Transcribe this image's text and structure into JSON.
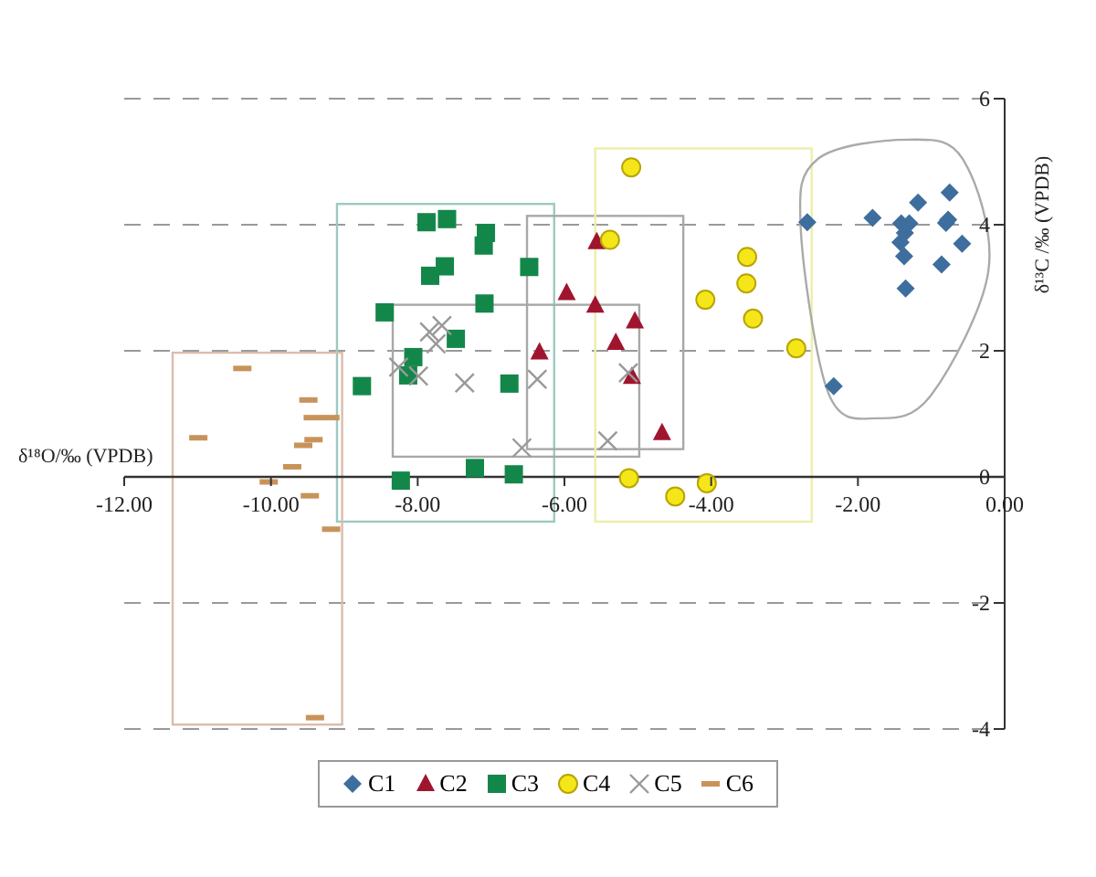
{
  "chart_data": {
    "type": "scatter",
    "xlabel": "δ¹⁸O/‰ (VPDB)",
    "ylabel": "δ¹³C /‰ (VPDB)",
    "xlim": [
      -12,
      0
    ],
    "ylim": [
      -4,
      6
    ],
    "xticks": [
      {
        "value": -12,
        "label": "-12.00"
      },
      {
        "value": -10,
        "label": "-10.00"
      },
      {
        "value": -8,
        "label": "-8.00"
      },
      {
        "value": -6,
        "label": "-6.00"
      },
      {
        "value": -4,
        "label": "-4.00"
      },
      {
        "value": -2,
        "label": "-2.00"
      },
      {
        "value": 0,
        "label": "0.00"
      }
    ],
    "yticks": [
      -4,
      -2,
      0,
      2,
      4,
      6
    ],
    "grid": "y",
    "legend": "bottom",
    "series": [
      {
        "name": "C1",
        "color": "#3e6e9e",
        "marker": "diamond",
        "x": [
          -2.69,
          -2.33,
          -1.8,
          -1.18,
          -0.75,
          -1.41,
          -1.3,
          -1.36,
          -1.42,
          -1.37,
          -1.35,
          -0.8,
          -0.77,
          -0.86,
          -0.58
        ],
        "values": [
          4.04,
          1.44,
          4.11,
          4.35,
          4.51,
          4.02,
          4.02,
          3.87,
          3.72,
          3.5,
          2.99,
          4.03,
          4.08,
          3.37,
          3.7
        ]
      },
      {
        "name": "C2",
        "color": "#a0152e",
        "marker": "triangle",
        "x": [
          -5.97,
          -6.34,
          -5.56,
          -5.58,
          -5.04,
          -5.3,
          -5.08,
          -4.67
        ],
        "values": [
          2.92,
          1.98,
          3.73,
          2.72,
          2.47,
          2.13,
          1.59,
          0.7
        ]
      },
      {
        "name": "C3",
        "color": "#13874a",
        "marker": "square",
        "x": [
          -7.88,
          -7.6,
          -7.07,
          -7.1,
          -7.63,
          -7.83,
          -6.48,
          -7.09,
          -8.45,
          -7.48,
          -8.06,
          -8.13,
          -8.76,
          -6.75,
          -7.22,
          -6.69,
          -8.23
        ],
        "values": [
          4.04,
          4.09,
          3.87,
          3.67,
          3.34,
          3.19,
          3.33,
          2.75,
          2.61,
          2.19,
          1.9,
          1.61,
          1.44,
          1.48,
          0.14,
          0.04,
          -0.06
        ]
      },
      {
        "name": "C4",
        "color": "#f5e61a",
        "marker": "circle",
        "x": [
          -5.09,
          -5.38,
          -3.51,
          -3.52,
          -4.08,
          -3.43,
          -2.84,
          -5.12,
          -4.06,
          -4.49
        ],
        "values": [
          4.91,
          3.76,
          3.49,
          3.07,
          2.81,
          2.51,
          2.04,
          -0.02,
          -0.1,
          -0.31
        ]
      },
      {
        "name": "C5",
        "color": "#999999",
        "marker": "cross",
        "x": [
          -7.84,
          -7.67,
          -7.75,
          -8.26,
          -7.99,
          -7.36,
          -6.37,
          -6.58,
          -5.41,
          -5.13
        ],
        "values": [
          2.3,
          2.4,
          2.11,
          1.74,
          1.6,
          1.49,
          1.55,
          0.46,
          0.57,
          1.65
        ]
      },
      {
        "name": "C6",
        "color": "#c8935a",
        "x": [
          -10.39,
          -10.99,
          -9.49,
          -9.43,
          -9.19,
          -9.42,
          -9.56,
          -9.71,
          -10.03,
          -9.47,
          -9.18,
          -9.4
        ],
        "values": [
          1.72,
          0.62,
          1.22,
          0.94,
          0.94,
          0.59,
          0.5,
          0.16,
          -0.08,
          -0.3,
          -0.83,
          -3.82
        ]
      }
    ]
  }
}
